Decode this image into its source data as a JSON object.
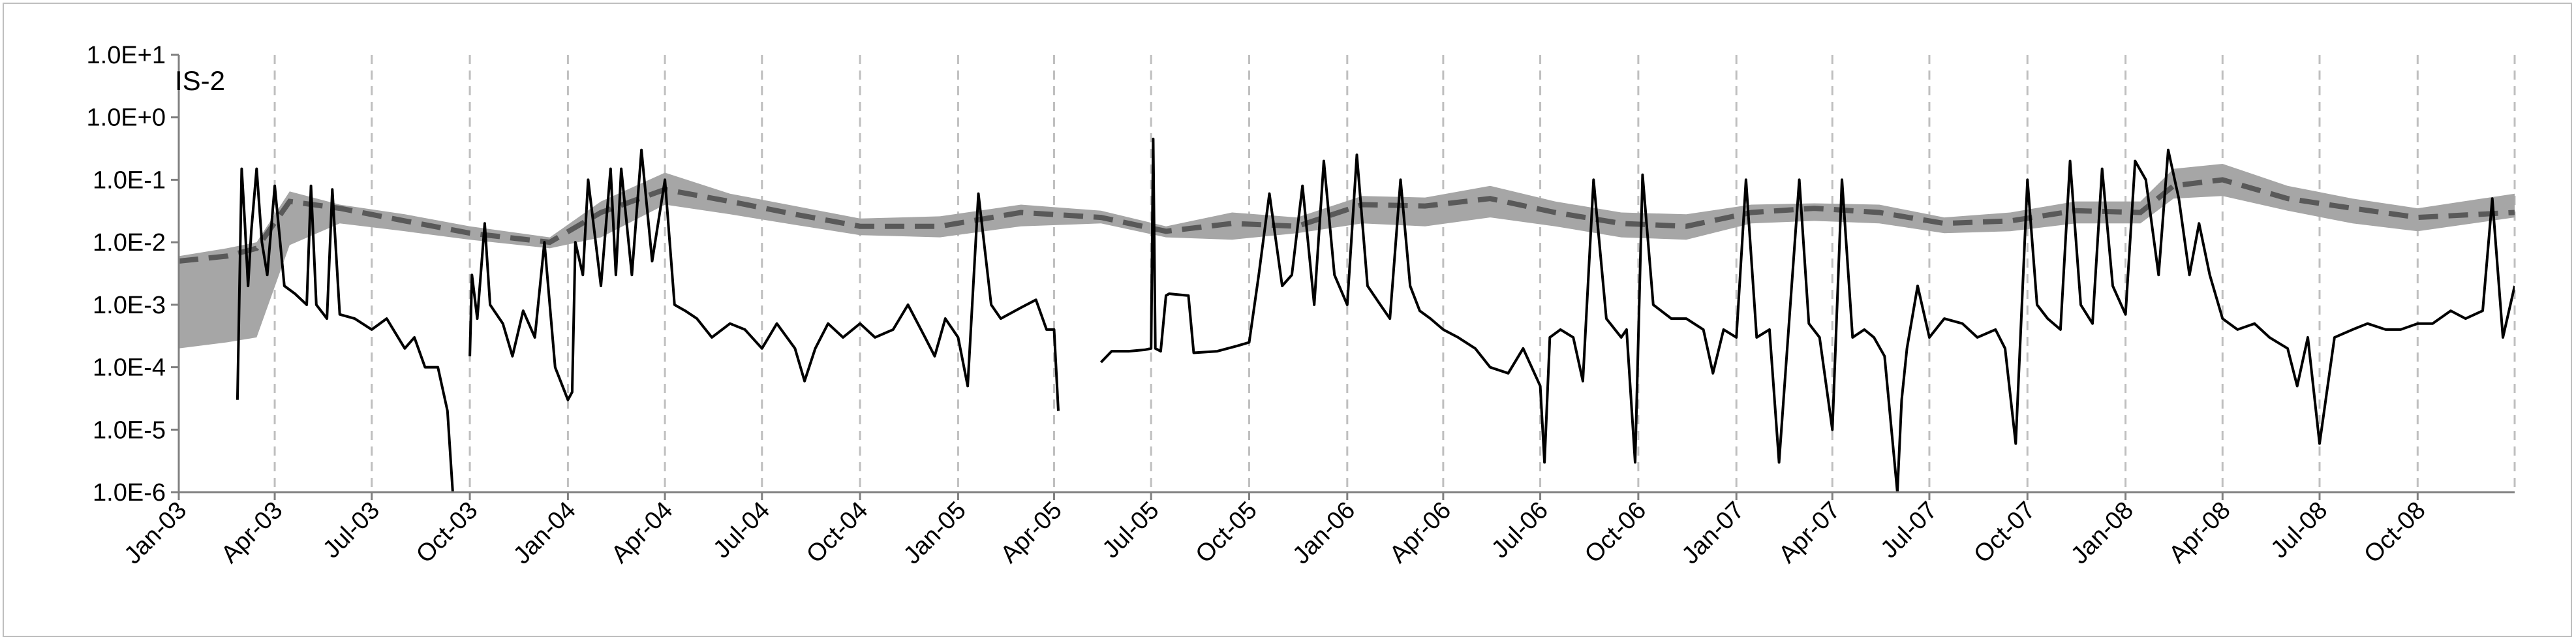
{
  "chart_data": {
    "type": "line",
    "station_label": "IS-2",
    "y_scale": "log",
    "ylim": [
      1e-06,
      10
    ],
    "y_ticks": [
      "1.0E-6",
      "1.0E-5",
      "1.0E-4",
      "1.0E-3",
      "1.0E-2",
      "1.0E-1",
      "1.0E+0",
      "1.0E+1"
    ],
    "x_range": [
      "2003-01-01",
      "2008-12-31"
    ],
    "x_ticks": [
      {
        "date": "2003-01-01",
        "label": "Jan-03"
      },
      {
        "date": "2003-04-01",
        "label": "Apr-03"
      },
      {
        "date": "2003-07-01",
        "label": "Jul-03"
      },
      {
        "date": "2003-10-01",
        "label": "Oct-03"
      },
      {
        "date": "2004-01-01",
        "label": "Jan-04"
      },
      {
        "date": "2004-04-01",
        "label": "Apr-04"
      },
      {
        "date": "2004-07-01",
        "label": "Jul-04"
      },
      {
        "date": "2004-10-01",
        "label": "Oct-04"
      },
      {
        "date": "2005-01-01",
        "label": "Jan-05"
      },
      {
        "date": "2005-04-01",
        "label": "Apr-05"
      },
      {
        "date": "2005-07-01",
        "label": "Jul-05"
      },
      {
        "date": "2005-10-01",
        "label": "Oct-05"
      },
      {
        "date": "2006-01-01",
        "label": "Jan-06"
      },
      {
        "date": "2006-04-01",
        "label": "Apr-06"
      },
      {
        "date": "2006-07-01",
        "label": "Jul-06"
      },
      {
        "date": "2006-10-01",
        "label": "Oct-06"
      },
      {
        "date": "2007-01-01",
        "label": "Jan-07"
      },
      {
        "date": "2007-04-01",
        "label": "Apr-07"
      },
      {
        "date": "2007-07-01",
        "label": "Jul-07"
      },
      {
        "date": "2007-10-01",
        "label": "Oct-07"
      },
      {
        "date": "2008-01-01",
        "label": "Jan-08"
      },
      {
        "date": "2008-04-01",
        "label": "Apr-08"
      },
      {
        "date": "2008-07-01",
        "label": "Jul-08"
      },
      {
        "date": "2008-10-01",
        "label": "Oct-08"
      }
    ],
    "gridlines": "vertical dashed at each tick",
    "series": [
      {
        "style": "band",
        "color": "#a6a6a6",
        "x": [
          "2003-01-01",
          "2003-02-15",
          "2003-03-15",
          "2003-04-15",
          "2003-06-01",
          "2003-08-01",
          "2003-10-01",
          "2003-12-15",
          "2004-02-01",
          "2004-04-01",
          "2004-06-01",
          "2004-08-01",
          "2004-10-01",
          "2004-12-15",
          "2005-03-01",
          "2005-05-15",
          "2005-07-15",
          "2005-09-15",
          "2005-11-15",
          "2006-01-15",
          "2006-03-15",
          "2006-05-15",
          "2006-07-15",
          "2006-09-15",
          "2006-11-15",
          "2007-01-15",
          "2007-03-15",
          "2007-05-15",
          "2007-07-15",
          "2007-09-15",
          "2007-11-15",
          "2008-01-15",
          "2008-02-15",
          "2008-04-01",
          "2008-06-01",
          "2008-08-01",
          "2008-10-01",
          "2008-12-31"
        ],
        "lower": [
          0.0002,
          0.00025,
          0.0003,
          0.009,
          0.02,
          0.015,
          0.011,
          0.008,
          0.012,
          0.04,
          0.028,
          0.019,
          0.013,
          0.012,
          0.018,
          0.02,
          0.012,
          0.011,
          0.014,
          0.02,
          0.018,
          0.025,
          0.018,
          0.012,
          0.011,
          0.02,
          0.022,
          0.02,
          0.014,
          0.015,
          0.02,
          0.02,
          0.05,
          0.055,
          0.032,
          0.02,
          0.015,
          0.025
        ],
        "upper": [
          0.006,
          0.008,
          0.01,
          0.065,
          0.04,
          0.028,
          0.018,
          0.012,
          0.045,
          0.13,
          0.06,
          0.038,
          0.024,
          0.026,
          0.04,
          0.032,
          0.018,
          0.03,
          0.025,
          0.055,
          0.052,
          0.08,
          0.045,
          0.03,
          0.028,
          0.04,
          0.042,
          0.04,
          0.025,
          0.03,
          0.045,
          0.045,
          0.15,
          0.18,
          0.08,
          0.05,
          0.035,
          0.06
        ]
      },
      {
        "style": "dashed",
        "color": "#595959",
        "x": [
          "2003-01-01",
          "2003-02-15",
          "2003-03-15",
          "2003-04-15",
          "2003-06-01",
          "2003-08-01",
          "2003-10-01",
          "2003-12-15",
          "2004-02-01",
          "2004-04-01",
          "2004-06-01",
          "2004-08-01",
          "2004-10-01",
          "2004-12-15",
          "2005-03-01",
          "2005-05-15",
          "2005-07-15",
          "2005-09-15",
          "2005-11-15",
          "2006-01-15",
          "2006-03-15",
          "2006-05-15",
          "2006-07-15",
          "2006-09-15",
          "2006-11-15",
          "2007-01-15",
          "2007-03-15",
          "2007-05-15",
          "2007-07-15",
          "2007-09-15",
          "2007-11-15",
          "2008-01-15",
          "2008-02-15",
          "2008-04-01",
          "2008-06-01",
          "2008-08-01",
          "2008-10-01",
          "2008-12-31"
        ],
        "y": [
          0.005,
          0.006,
          0.008,
          0.045,
          0.035,
          0.022,
          0.014,
          0.01,
          0.03,
          0.07,
          0.045,
          0.028,
          0.018,
          0.018,
          0.03,
          0.025,
          0.015,
          0.02,
          0.018,
          0.04,
          0.038,
          0.05,
          0.03,
          0.02,
          0.018,
          0.03,
          0.035,
          0.03,
          0.02,
          0.022,
          0.032,
          0.03,
          0.08,
          0.1,
          0.05,
          0.035,
          0.025,
          0.03
        ]
      },
      {
        "style": "solid",
        "color": "#000000",
        "segments": [
          {
            "x": [
              "2003-02-25",
              "2003-03-01",
              "2003-03-04",
              "2003-03-07",
              "2003-03-10",
              "2003-03-15",
              "2003-03-20",
              "2003-03-25",
              "2003-04-01",
              "2003-04-10",
              "2003-04-20",
              "2003-05-01",
              "2003-05-05",
              "2003-05-10",
              "2003-05-20",
              "2003-05-25",
              "2003-06-01",
              "2003-06-15",
              "2003-07-01",
              "2003-07-15",
              "2003-08-01",
              "2003-08-10",
              "2003-08-20",
              "2003-09-01",
              "2003-09-10",
              "2003-09-15"
            ],
            "y": [
              3e-05,
              0.15,
              0.02,
              0.002,
              0.015,
              0.15,
              0.01,
              0.003,
              0.08,
              0.002,
              0.0015,
              0.001,
              0.08,
              0.001,
              0.0006,
              0.07,
              0.0007,
              0.0006,
              0.0004,
              0.0006,
              0.0002,
              0.0003,
              0.0001,
              0.0001,
              2e-05,
              1e-06
            ]
          },
          {
            "x": [
              "2003-10-01",
              "2003-10-03",
              "2003-10-08",
              "2003-10-15",
              "2003-10-20",
              "2003-11-01",
              "2003-11-10",
              "2003-11-20",
              "2003-12-01",
              "2003-12-10",
              "2003-12-20",
              "2004-01-01",
              "2004-01-05",
              "2004-01-08",
              "2004-01-15",
              "2004-01-20",
              "2004-02-01",
              "2004-02-10",
              "2004-02-15",
              "2004-02-20",
              "2004-03-01",
              "2004-03-10",
              "2004-03-20",
              "2004-04-01",
              "2004-04-10",
              "2004-04-20",
              "2004-05-01",
              "2004-05-15",
              "2004-06-01",
              "2004-06-15",
              "2004-07-01",
              "2004-07-15",
              "2004-08-01",
              "2004-08-10",
              "2004-08-20",
              "2004-09-01",
              "2004-09-15",
              "2004-10-01",
              "2004-10-15",
              "2004-11-01",
              "2004-11-15",
              "2004-12-01",
              "2004-12-10",
              "2004-12-20",
              "2005-01-01",
              "2005-01-10",
              "2005-01-20",
              "2005-02-01",
              "2005-02-10",
              "2005-03-01",
              "2005-03-15",
              "2005-03-25",
              "2005-04-01",
              "2005-04-05"
            ],
            "y": [
              0.00015,
              0.003,
              0.0006,
              0.02,
              0.001,
              0.0005,
              0.00015,
              0.0008,
              0.0003,
              0.01,
              0.0001,
              3e-05,
              4e-05,
              0.01,
              0.003,
              0.1,
              0.002,
              0.15,
              0.003,
              0.15,
              0.003,
              0.3,
              0.005,
              0.1,
              0.001,
              0.0008,
              0.0006,
              0.0003,
              0.0005,
              0.0004,
              0.0002,
              0.0005,
              0.0002,
              6e-05,
              0.0002,
              0.0005,
              0.0003,
              0.0005,
              0.0003,
              0.0004,
              0.001,
              0.0003,
              0.00015,
              0.0006,
              0.0003,
              5e-05,
              0.06,
              0.001,
              0.0006,
              0.0009,
              0.0012,
              0.0004,
              0.0004,
              2e-05
            ]
          },
          {
            "x": [
              "2005-05-15",
              "2005-05-25",
              "2005-06-10",
              "2005-06-25",
              "2005-07-01",
              "2005-07-03",
              "2005-07-05",
              "2005-07-10",
              "2005-07-15",
              "2005-07-18",
              "2005-08-05",
              "2005-08-10",
              "2005-09-01",
              "2005-09-20",
              "2005-10-01",
              "2005-10-10",
              "2005-10-20",
              "2005-11-01",
              "2005-11-10",
              "2005-11-20",
              "2005-12-01",
              "2005-12-10",
              "2005-12-20",
              "2006-01-01",
              "2006-01-10",
              "2006-01-20",
              "2006-02-01",
              "2006-02-10",
              "2006-02-20",
              "2006-03-01",
              "2006-03-10",
              "2006-03-20",
              "2006-04-01",
              "2006-04-15",
              "2006-05-01",
              "2006-05-15",
              "2006-06-01",
              "2006-06-15",
              "2006-07-01",
              "2006-07-05",
              "2006-07-10",
              "2006-07-20",
              "2006-08-01",
              "2006-08-10",
              "2006-08-20",
              "2006-09-01",
              "2006-09-15",
              "2006-09-20",
              "2006-09-28",
              "2006-10-05",
              "2006-10-15",
              "2006-11-01",
              "2006-11-15",
              "2006-12-01",
              "2006-12-10",
              "2006-12-20",
              "2007-01-01",
              "2007-01-10",
              "2007-01-20",
              "2007-02-01",
              "2007-02-10",
              "2007-03-01",
              "2007-03-10",
              "2007-03-20",
              "2007-04-01",
              "2007-04-10",
              "2007-04-20",
              "2007-05-01",
              "2007-05-10",
              "2007-05-20",
              "2007-06-01",
              "2007-06-05",
              "2007-06-10",
              "2007-06-20",
              "2007-07-01",
              "2007-07-15",
              "2007-08-01",
              "2007-08-15",
              "2007-09-01",
              "2007-09-10",
              "2007-09-20",
              "2007-10-01",
              "2007-10-10",
              "2007-10-20",
              "2007-11-01",
              "2007-11-10",
              "2007-11-20",
              "2007-12-01",
              "2007-12-10",
              "2007-12-20",
              "2008-01-01",
              "2008-01-10",
              "2008-01-20",
              "2008-02-01",
              "2008-02-10",
              "2008-02-20",
              "2008-03-01",
              "2008-03-10",
              "2008-03-20",
              "2008-04-01",
              "2008-04-15",
              "2008-05-01",
              "2008-05-15",
              "2008-06-01",
              "2008-06-10",
              "2008-06-20",
              "2008-07-01",
              "2008-07-15",
              "2008-08-01",
              "2008-08-15",
              "2008-09-01",
              "2008-09-15",
              "2008-10-01",
              "2008-10-15",
              "2008-11-01",
              "2008-11-15",
              "2008-12-01",
              "2008-12-10",
              "2008-12-20",
              "2008-12-31"
            ],
            "y": [
              0.00012,
              0.00018,
              0.00018,
              0.00019,
              0.0002,
              0.45,
              0.0002,
              0.00018,
              0.0014,
              0.0015,
              0.0014,
              0.00017,
              0.00018,
              0.00022,
              0.00025,
              0.003,
              0.06,
              0.002,
              0.003,
              0.08,
              0.001,
              0.2,
              0.003,
              0.001,
              0.25,
              0.002,
              0.001,
              0.0006,
              0.1,
              0.002,
              0.0008,
              0.0006,
              0.0004,
              0.0003,
              0.0002,
              0.0001,
              8e-05,
              0.0002,
              5e-05,
              3e-06,
              0.0003,
              0.0004,
              0.0003,
              6e-05,
              0.1,
              0.0006,
              0.0003,
              0.0004,
              3e-06,
              0.12,
              0.001,
              0.0006,
              0.0006,
              0.0004,
              8e-05,
              0.0004,
              0.0003,
              0.1,
              0.0003,
              0.0004,
              3e-06,
              0.1,
              0.0005,
              0.0003,
              1e-05,
              0.1,
              0.0003,
              0.0004,
              0.0003,
              0.00015,
              1e-06,
              3e-05,
              0.0002,
              0.002,
              0.0003,
              0.0006,
              0.0005,
              0.0003,
              0.0004,
              0.0002,
              6e-06,
              0.1,
              0.001,
              0.0006,
              0.0004,
              0.2,
              0.001,
              0.0005,
              0.15,
              0.002,
              0.0007,
              0.2,
              0.1,
              0.003,
              0.3,
              0.05,
              0.003,
              0.02,
              0.003,
              0.0006,
              0.0004,
              0.0005,
              0.0003,
              0.0002,
              5e-05,
              0.0003,
              6e-06,
              0.0003,
              0.0004,
              0.0005,
              0.0004,
              0.0004,
              0.0005,
              0.0005,
              0.0008,
              0.0006,
              0.0008,
              0.05,
              0.0003,
              0.002
            ]
          }
        ]
      }
    ]
  }
}
